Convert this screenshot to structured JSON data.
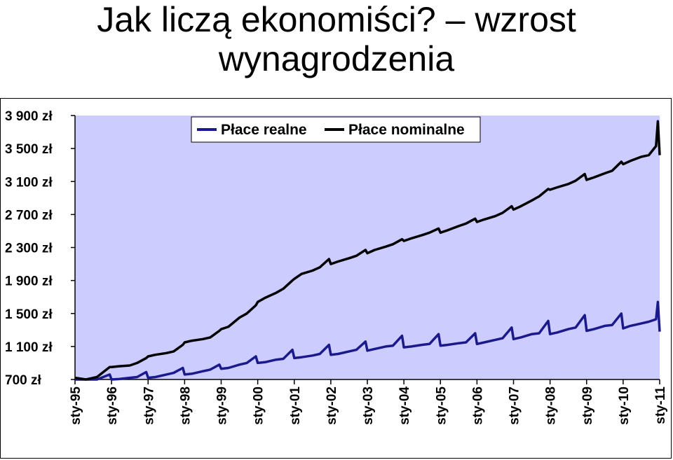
{
  "slide": {
    "title_line1": "Jak liczą ekonomiści? – wzrost",
    "title_line2": "wynagrodzenia"
  },
  "colors": {
    "plot_background": "#ccccff",
    "real": "#1a1a8c",
    "nominal": "#000000"
  },
  "chart_data": {
    "type": "line",
    "title": "",
    "xlabel": "",
    "ylabel": "",
    "ylim": [
      700,
      3900
    ],
    "y_ticks": [
      {
        "value": 700,
        "label": "700 zł"
      },
      {
        "value": 1100,
        "label": "1 100 zł"
      },
      {
        "value": 1500,
        "label": "1 500 zł"
      },
      {
        "value": 1900,
        "label": "1 900 zł"
      },
      {
        "value": 2300,
        "label": "2 300 zł"
      },
      {
        "value": 2700,
        "label": "2 700 zł"
      },
      {
        "value": 3100,
        "label": "3 100 zł"
      },
      {
        "value": 3500,
        "label": "3 500 zł"
      },
      {
        "value": 3900,
        "label": "3 900 zł"
      }
    ],
    "categories": [
      "sty-95",
      "sty-96",
      "sty-97",
      "sty-98",
      "sty-99",
      "sty-00",
      "sty-01",
      "sty-02",
      "sty-03",
      "sty-04",
      "sty-05",
      "sty-06",
      "sty-07",
      "sty-08",
      "sty-09",
      "sty-10",
      "sty-11"
    ],
    "grid": false,
    "legend_position": "top",
    "series": [
      {
        "name": "Płace realne",
        "color": "#1a1a8c",
        "x": [
          1995.0,
          1995.3,
          1995.6,
          1995.95,
          1996.0,
          1996.2,
          1996.5,
          1996.7,
          1996.95,
          1997.0,
          1997.2,
          1997.5,
          1997.7,
          1997.95,
          1998.0,
          1998.2,
          1998.5,
          1998.7,
          1998.95,
          1999.0,
          1999.2,
          1999.5,
          1999.7,
          1999.95,
          2000.0,
          2000.2,
          2000.5,
          2000.7,
          2000.95,
          2001.0,
          2001.2,
          2001.5,
          2001.7,
          2001.95,
          2002.0,
          2002.2,
          2002.5,
          2002.7,
          2002.95,
          2003.0,
          2003.2,
          2003.5,
          2003.7,
          2003.95,
          2004.0,
          2004.2,
          2004.5,
          2004.7,
          2004.95,
          2005.0,
          2005.2,
          2005.5,
          2005.7,
          2005.95,
          2006.0,
          2006.2,
          2006.5,
          2006.7,
          2006.95,
          2007.0,
          2007.2,
          2007.5,
          2007.7,
          2007.95,
          2008.0,
          2008.2,
          2008.5,
          2008.7,
          2008.95,
          2009.0,
          2009.2,
          2009.5,
          2009.7,
          2009.95,
          2010.0,
          2010.2,
          2010.5,
          2010.7,
          2010.9,
          2010.95,
          2011.0
        ],
        "values": [
          700,
          700,
          700,
          760,
          700,
          705,
          720,
          730,
          790,
          720,
          730,
          760,
          780,
          840,
          760,
          770,
          800,
          820,
          880,
          830,
          840,
          880,
          900,
          980,
          900,
          910,
          940,
          950,
          1060,
          960,
          970,
          990,
          1010,
          1120,
          1000,
          1010,
          1040,
          1060,
          1160,
          1050,
          1070,
          1100,
          1110,
          1230,
          1090,
          1100,
          1120,
          1130,
          1250,
          1110,
          1120,
          1140,
          1150,
          1260,
          1130,
          1150,
          1180,
          1200,
          1330,
          1190,
          1210,
          1250,
          1260,
          1410,
          1250,
          1270,
          1310,
          1330,
          1480,
          1290,
          1310,
          1350,
          1360,
          1500,
          1320,
          1350,
          1380,
          1400,
          1430,
          1640,
          1280
        ]
      },
      {
        "name": "Płace nominalne",
        "color": "#000000",
        "x": [
          1995.0,
          1995.3,
          1995.6,
          1995.95,
          1996.0,
          1996.2,
          1996.5,
          1996.7,
          1996.95,
          1997.0,
          1997.2,
          1997.5,
          1997.7,
          1997.95,
          1998.0,
          1998.2,
          1998.5,
          1998.7,
          1998.95,
          1999.0,
          1999.2,
          1999.5,
          1999.7,
          1999.95,
          2000.0,
          2000.2,
          2000.5,
          2000.7,
          2000.95,
          2001.0,
          2001.2,
          2001.5,
          2001.7,
          2001.95,
          2002.0,
          2002.2,
          2002.5,
          2002.7,
          2002.95,
          2003.0,
          2003.2,
          2003.5,
          2003.7,
          2003.95,
          2004.0,
          2004.2,
          2004.5,
          2004.7,
          2004.95,
          2005.0,
          2005.2,
          2005.5,
          2005.7,
          2005.95,
          2006.0,
          2006.2,
          2006.5,
          2006.7,
          2006.95,
          2007.0,
          2007.2,
          2007.5,
          2007.7,
          2007.95,
          2008.0,
          2008.2,
          2008.5,
          2008.7,
          2008.95,
          2009.0,
          2009.2,
          2009.5,
          2009.7,
          2009.95,
          2010.0,
          2010.2,
          2010.5,
          2010.7,
          2010.9,
          2010.95,
          2011.0
        ],
        "values": [
          720,
          700,
          730,
          850,
          850,
          860,
          870,
          900,
          960,
          980,
          1000,
          1020,
          1040,
          1120,
          1150,
          1170,
          1190,
          1210,
          1290,
          1310,
          1340,
          1450,
          1500,
          1600,
          1640,
          1690,
          1750,
          1800,
          1900,
          1920,
          1980,
          2020,
          2060,
          2160,
          2100,
          2130,
          2170,
          2200,
          2270,
          2230,
          2270,
          2310,
          2340,
          2400,
          2380,
          2410,
          2450,
          2480,
          2530,
          2480,
          2510,
          2560,
          2590,
          2650,
          2610,
          2640,
          2680,
          2720,
          2800,
          2760,
          2800,
          2870,
          2920,
          3010,
          3000,
          3030,
          3070,
          3110,
          3190,
          3120,
          3150,
          3200,
          3230,
          3340,
          3310,
          3350,
          3400,
          3420,
          3530,
          3830,
          3420
        ]
      }
    ]
  }
}
